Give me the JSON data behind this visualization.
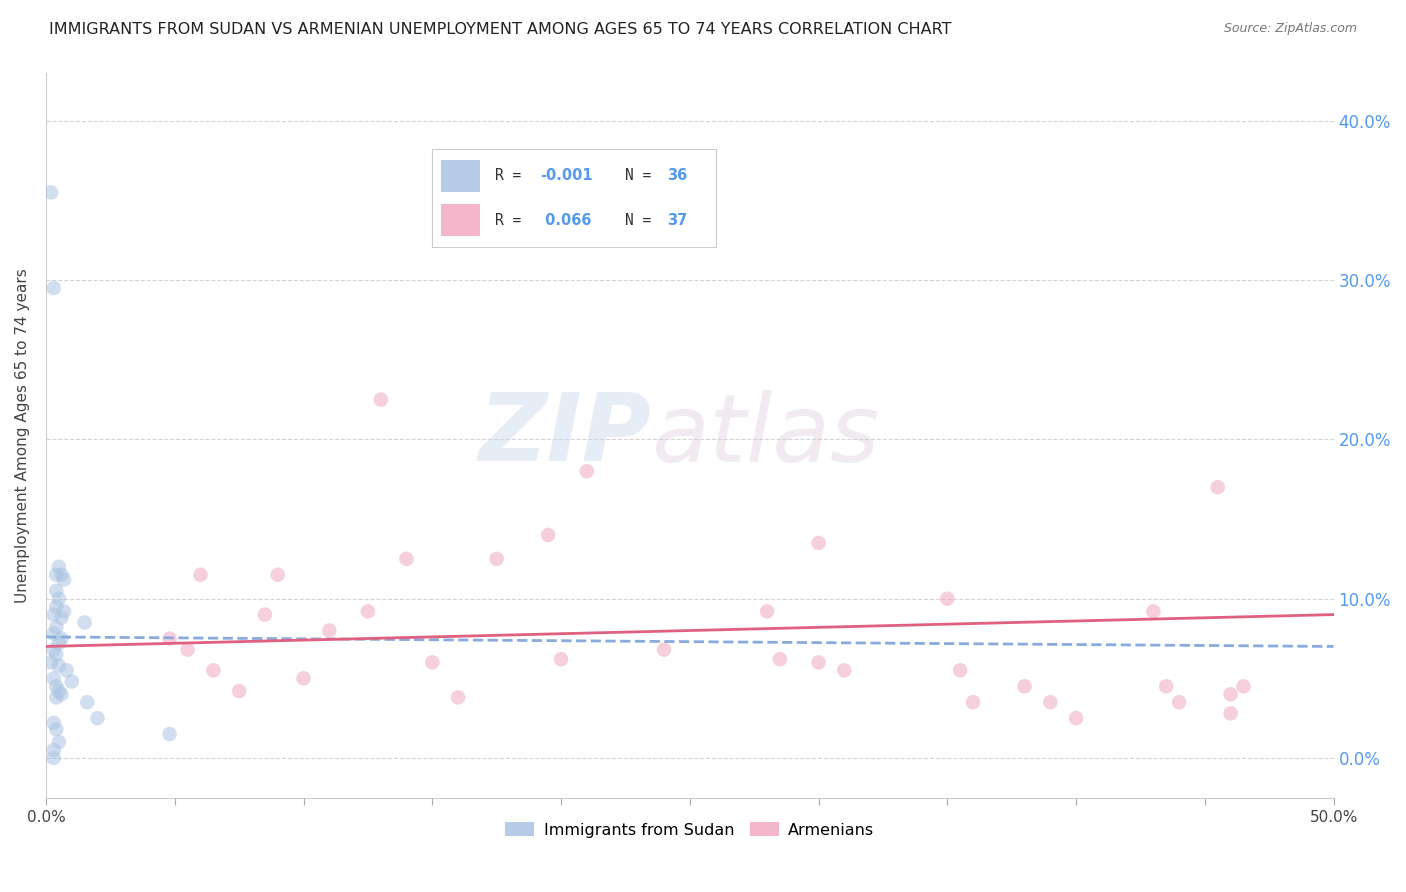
{
  "title": "IMMIGRANTS FROM SUDAN VS ARMENIAN UNEMPLOYMENT AMONG AGES 65 TO 74 YEARS CORRELATION CHART",
  "source": "Source: ZipAtlas.com",
  "ylabel": "Unemployment Among Ages 65 to 74 years",
  "xmin": 0.0,
  "xmax": 0.5,
  "ymin": -0.025,
  "ymax": 0.43,
  "yticks": [
    0.0,
    0.1,
    0.2,
    0.3,
    0.4
  ],
  "ytick_labels_right": [
    "0.0%",
    "10.0%",
    "20.0%",
    "30.0%",
    "40.0%"
  ],
  "xtick_positions": [
    0.0,
    0.05,
    0.1,
    0.15,
    0.2,
    0.25,
    0.3,
    0.35,
    0.4,
    0.45,
    0.5
  ],
  "blue_color": "#aac4e2",
  "pink_color": "#f0a8c0",
  "trend_blue_color": "#88aadd",
  "trend_pink_color": "#e06080",
  "blue_dots_x": [
    0.002,
    0.002,
    0.003,
    0.003,
    0.003,
    0.003,
    0.003,
    0.004,
    0.004,
    0.004,
    0.004,
    0.004,
    0.004,
    0.004,
    0.005,
    0.005,
    0.005,
    0.005,
    0.005,
    0.006,
    0.006,
    0.006,
    0.006,
    0.007,
    0.007,
    0.008,
    0.01,
    0.015,
    0.016,
    0.02,
    0.003,
    0.004,
    0.005,
    0.048,
    0.003,
    0.003
  ],
  "blue_dots_y": [
    0.355,
    0.06,
    0.295,
    0.09,
    0.078,
    0.068,
    0.05,
    0.115,
    0.105,
    0.095,
    0.082,
    0.065,
    0.045,
    0.038,
    0.12,
    0.1,
    0.072,
    0.058,
    0.042,
    0.115,
    0.088,
    0.075,
    0.04,
    0.112,
    0.092,
    0.055,
    0.048,
    0.085,
    0.035,
    0.025,
    0.022,
    0.018,
    0.01,
    0.015,
    0.005,
    0.0
  ],
  "pink_dots_x": [
    0.048,
    0.055,
    0.06,
    0.065,
    0.075,
    0.085,
    0.09,
    0.1,
    0.11,
    0.125,
    0.13,
    0.14,
    0.15,
    0.16,
    0.175,
    0.195,
    0.2,
    0.21,
    0.24,
    0.28,
    0.285,
    0.3,
    0.3,
    0.31,
    0.35,
    0.355,
    0.36,
    0.38,
    0.39,
    0.4,
    0.43,
    0.435,
    0.44,
    0.455,
    0.46,
    0.465,
    0.46
  ],
  "pink_dots_y": [
    0.075,
    0.068,
    0.115,
    0.055,
    0.042,
    0.09,
    0.115,
    0.05,
    0.08,
    0.092,
    0.225,
    0.125,
    0.06,
    0.038,
    0.125,
    0.14,
    0.062,
    0.18,
    0.068,
    0.092,
    0.062,
    0.135,
    0.06,
    0.055,
    0.1,
    0.055,
    0.035,
    0.045,
    0.035,
    0.025,
    0.092,
    0.045,
    0.035,
    0.17,
    0.028,
    0.045,
    0.04
  ],
  "blue_trend_x": [
    0.0,
    0.5
  ],
  "blue_trend_y": [
    0.076,
    0.07
  ],
  "pink_trend_x": [
    0.0,
    0.5
  ],
  "pink_trend_y": [
    0.07,
    0.09
  ],
  "watermark_zip": "ZIP",
  "watermark_atlas": "atlas",
  "bg_color": "#ffffff",
  "grid_color": "#d0d0d0",
  "title_color": "#222222",
  "right_axis_color": "#5599ee",
  "axis_text_color": "#444444",
  "title_fontsize": 11.5,
  "axis_label_fontsize": 11,
  "tick_fontsize": 10,
  "dot_size": 110,
  "dot_alpha": 0.55,
  "legend_label_blue": "Immigrants from Sudan",
  "legend_label_pink": "Armenians",
  "legend_R_blue": "R = -0.001",
  "legend_N_blue": "N = 36",
  "legend_R_pink": "R =  0.066",
  "legend_N_pink": "N = 37"
}
